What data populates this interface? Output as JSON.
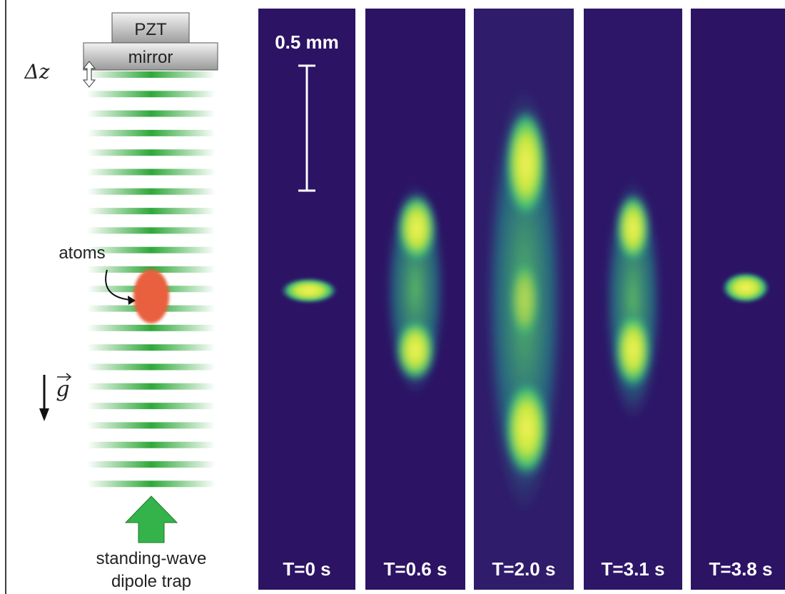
{
  "diagram": {
    "pzt": "PZT",
    "mirror": "mirror",
    "displacement": "Δz",
    "atoms": "atoms",
    "gravity": "g",
    "trap": [
      "standing-wave",
      "dipole trap"
    ]
  },
  "panels": {
    "scale_bar": "0.5 mm",
    "labels": [
      "T=0 s",
      "T=0.6 s",
      "T=2.0 s",
      "T=3.1 s",
      "T=3.8 s"
    ]
  }
}
